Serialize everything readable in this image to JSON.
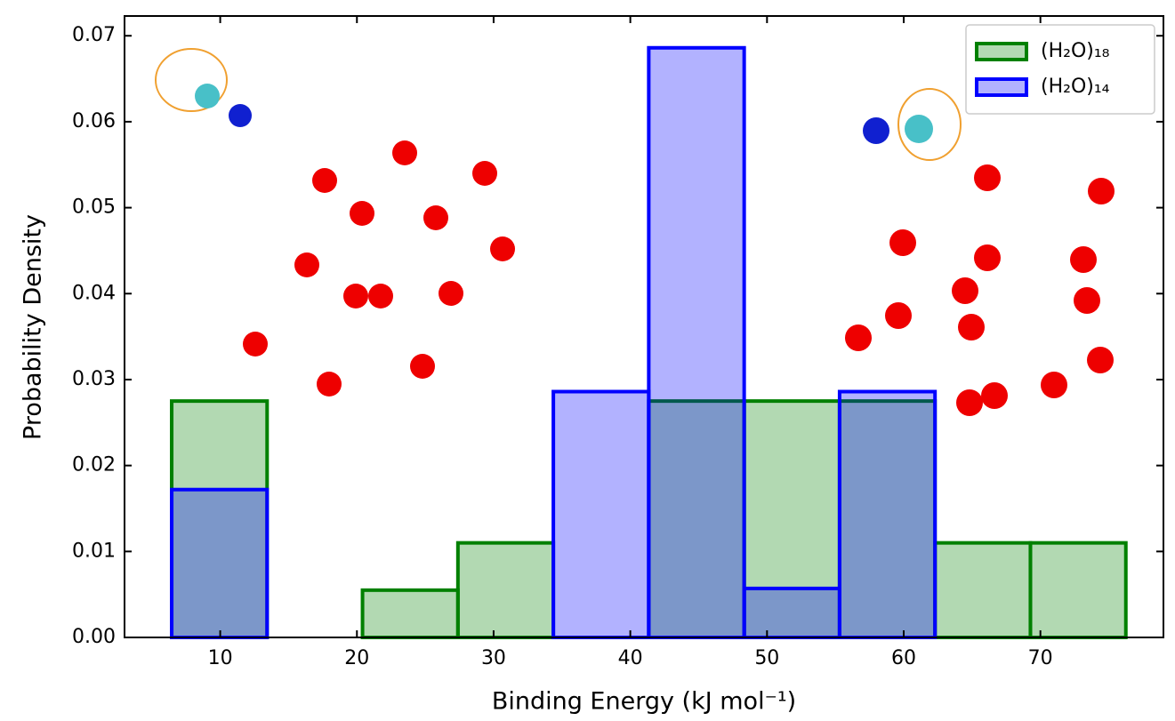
{
  "chart_data": {
    "type": "histogram",
    "x_label": "Binding Energy (kJ mol⁻¹)",
    "y_label": "Probability Density",
    "bins": [
      6.45,
      13.43,
      20.41,
      27.39,
      34.37,
      41.35,
      48.33,
      55.31,
      62.29,
      69.27,
      76.25
    ],
    "series": [
      {
        "name": "(H₂O)₁₈",
        "color": "#008000",
        "values": [
          0.0275,
          0,
          0.0055,
          0.011,
          0,
          0.0275,
          0.0275,
          0.0275,
          0.011,
          0.011
        ]
      },
      {
        "name": "(H₂O)₁₄",
        "color": "#0000ff",
        "values": [
          0.0172,
          0,
          0,
          0,
          0.0286,
          0.0686,
          0.0057,
          0.0286,
          0,
          0
        ]
      }
    ],
    "xlim": [
      3,
      79
    ],
    "ylim": [
      0,
      0.0723
    ],
    "xticks": [
      10,
      20,
      30,
      40,
      50,
      60,
      70
    ],
    "yticks": [
      {
        "value": 0,
        "label": "0.00"
      },
      0.01,
      0.02,
      0.03,
      0.04,
      0.05,
      0.06,
      0.07
    ],
    "legend": "upper right"
  }
}
